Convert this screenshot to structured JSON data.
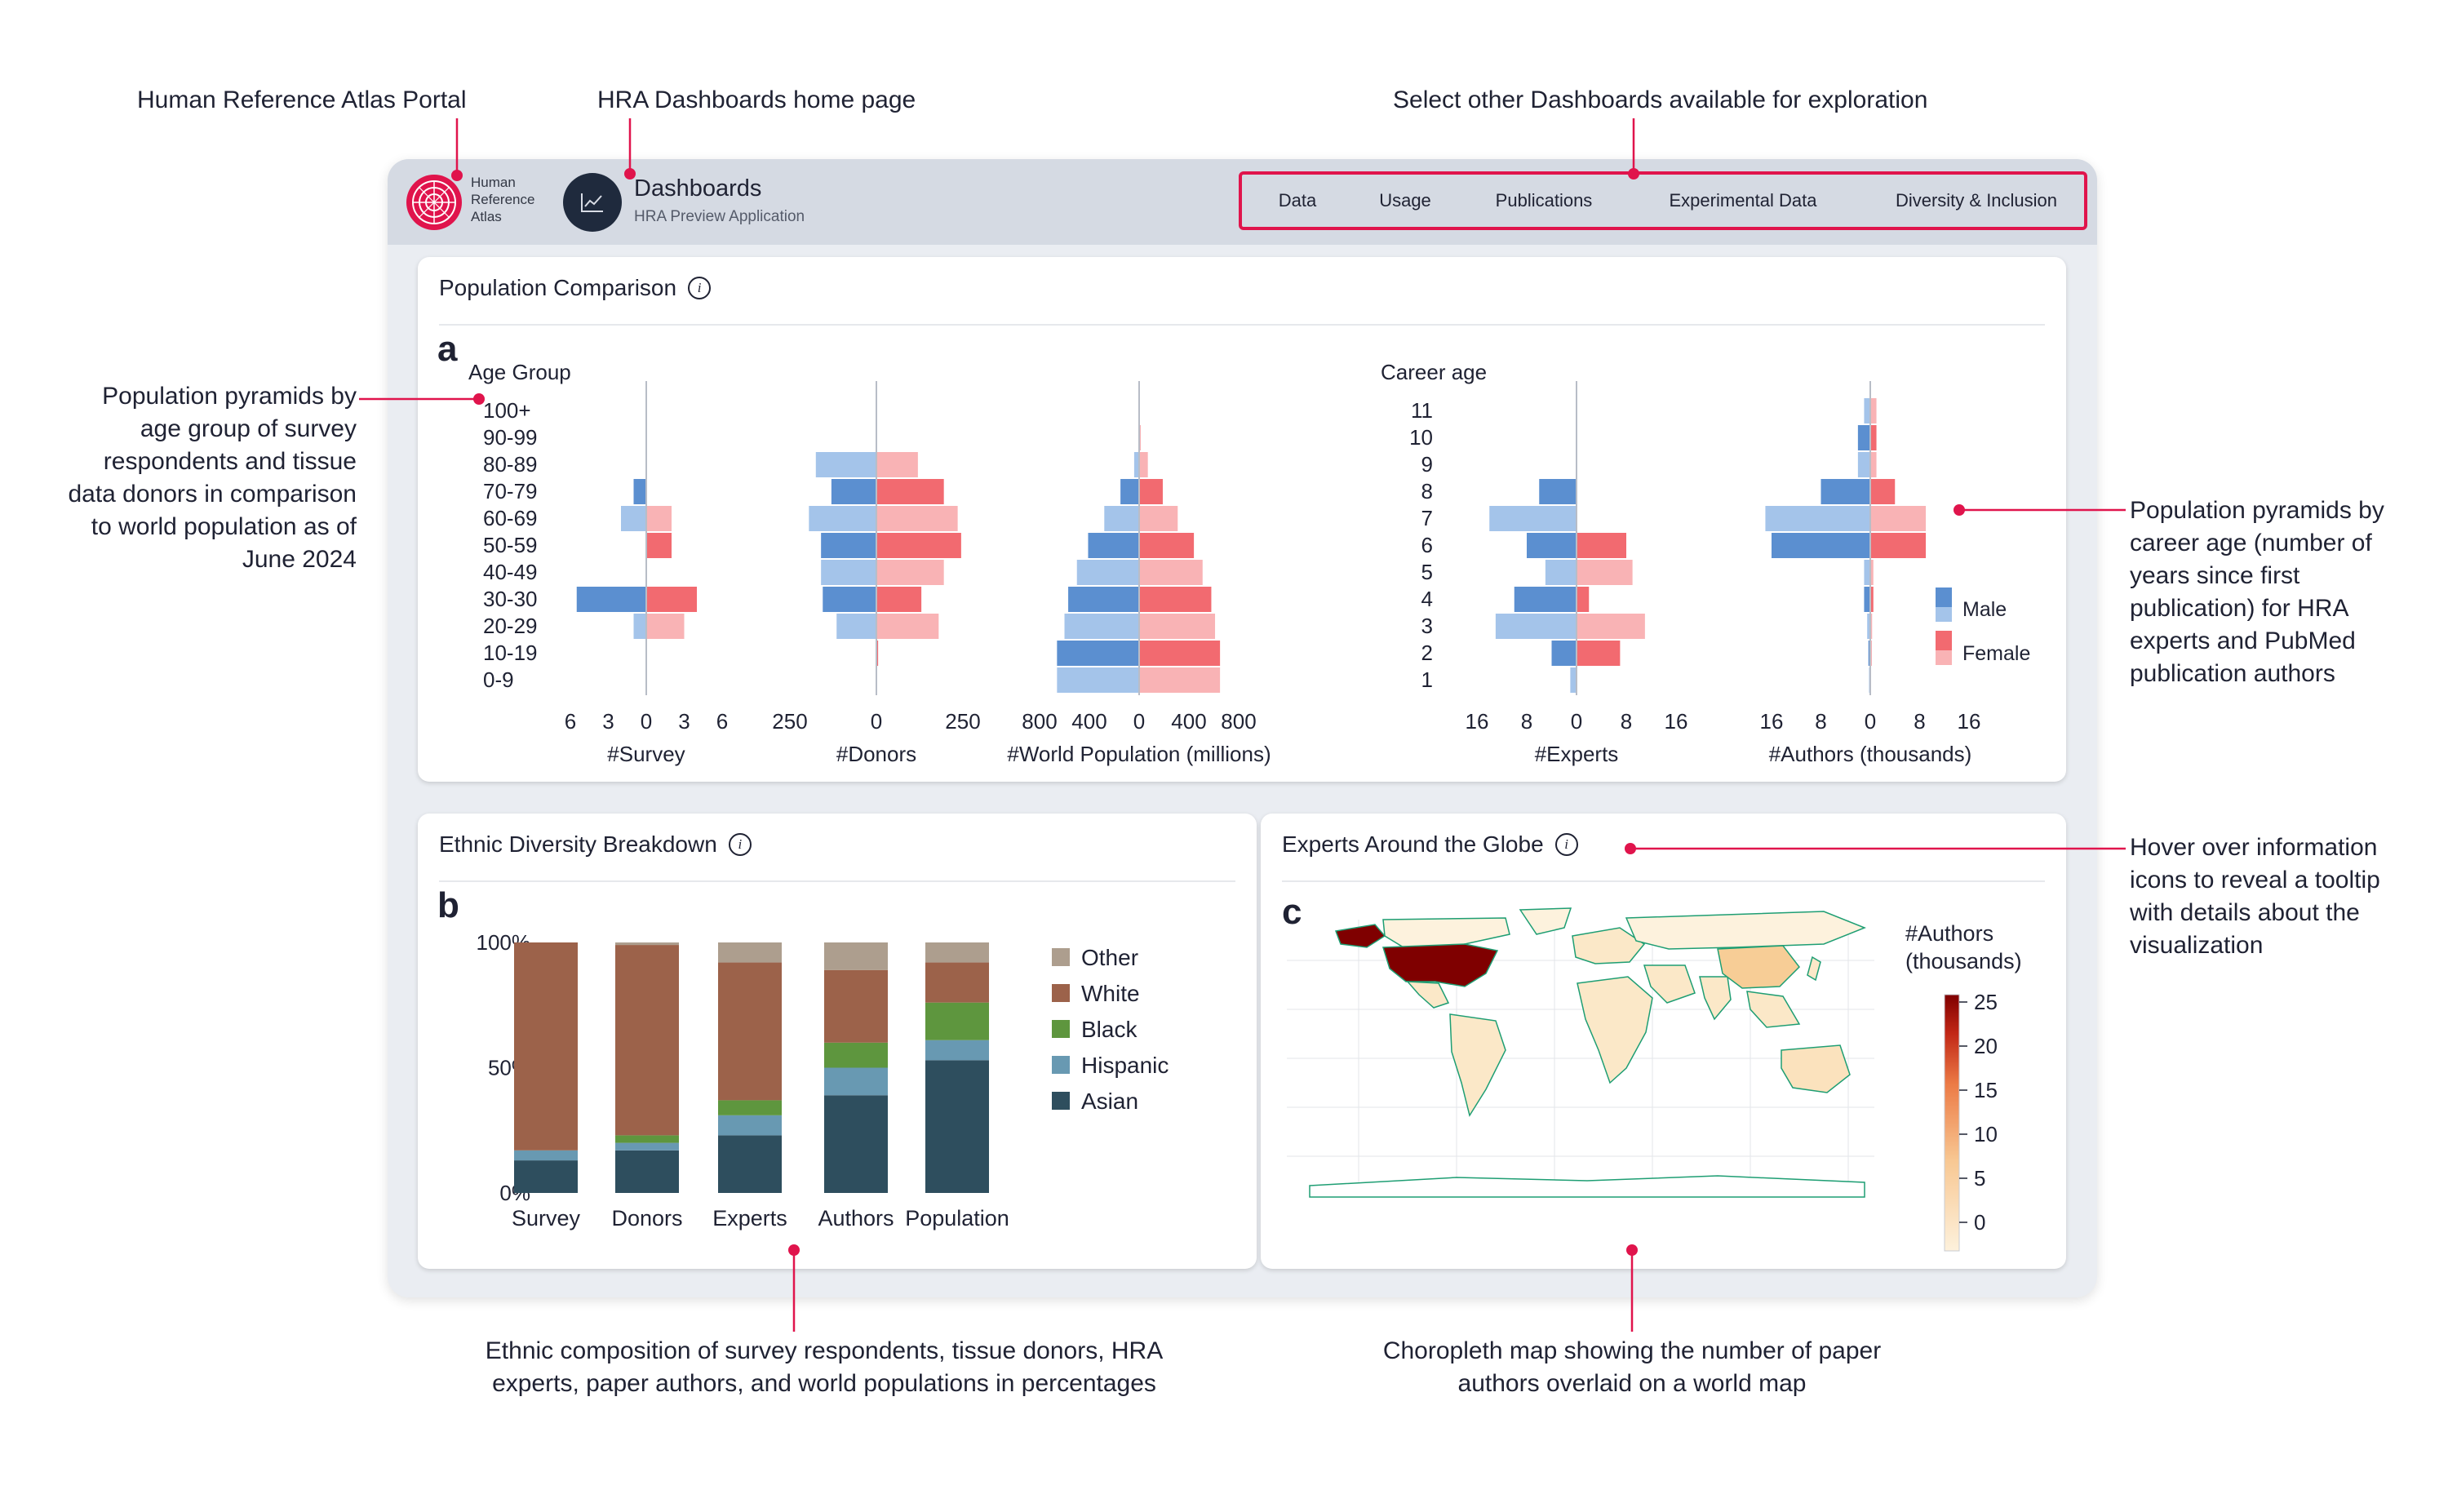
{
  "callouts": {
    "portal": "Human Reference Atlas Portal",
    "home": "HRA Dashboards home page",
    "select": "Select other Dashboards available for exploration",
    "pyramids_age": "Population pyramids by\nage group of survey\nrespondents and tissue\ndata donors in comparison\nto world population as of\nJune 2024",
    "pyramids_career": "Population pyramids by\ncareer age (number of\nyears since first\npublication) for HRA\nexperts and PubMed\npublication authors",
    "hover": "Hover over information\nicons to reveal a tooltip\nwith details about the\nvisualization",
    "ethnic": "Ethnic composition of survey respondents, tissue donors, HRA\nexperts, paper authors, and world populations in percentages",
    "choropleth": "Choropleth map showing the number of paper\nauthors overlaid on a world map"
  },
  "header": {
    "logo_text": "Human\nReference\nAtlas",
    "app_title": "Dashboards",
    "app_subtitle": "HRA Preview Application",
    "nav": [
      "Data",
      "Usage",
      "Publications",
      "Experimental Data",
      "Diversity & Inclusion"
    ]
  },
  "cards": {
    "population": {
      "title": "Population Comparison",
      "letter": "a",
      "info": "i"
    },
    "ethnic": {
      "title": "Ethnic Diversity Breakdown",
      "letter": "b",
      "info": "i"
    },
    "globe": {
      "title": "Experts Around the Globe",
      "letter": "c",
      "info": "i"
    }
  },
  "colors": {
    "male_dark": "#5b8fd0",
    "male_light": "#a4c4ea",
    "female_dark": "#f26a70",
    "female_light": "#f9b3b5",
    "accent": "#e0144c",
    "other": "#ad9e8e",
    "white": "#9c624a",
    "black": "#5e963e",
    "hispanic": "#6899b2",
    "asian": "#2e4e5e"
  },
  "chart_data": [
    {
      "type": "bar",
      "name": "age_pyramids",
      "y_title": "Age Group",
      "age_groups": [
        "100+",
        "90-99",
        "80-89",
        "70-79",
        "60-69",
        "50-59",
        "40-49",
        "30-30",
        "20-29",
        "10-19",
        "0-9"
      ],
      "panels": [
        {
          "xlabel": "#Survey",
          "ticks": [
            "6",
            "3",
            "0",
            "3",
            "6"
          ],
          "max": 6,
          "male": [
            0,
            0,
            0,
            1,
            2,
            0,
            0,
            5.5,
            1,
            0,
            0
          ],
          "female": [
            0,
            0,
            0,
            0,
            2,
            2,
            0,
            4,
            3,
            0,
            0
          ]
        },
        {
          "xlabel": "#Donors",
          "ticks": [
            "250",
            "0",
            "250"
          ],
          "max": 250,
          "male": [
            0,
            0,
            175,
            130,
            195,
            160,
            160,
            155,
            115,
            0,
            0
          ],
          "female": [
            0,
            0,
            120,
            195,
            235,
            245,
            195,
            130,
            180,
            5,
            0
          ]
        },
        {
          "xlabel": "#World Population (millions)",
          "ticks": [
            "800",
            "400",
            "0",
            "400",
            "800"
          ],
          "max": 800,
          "male": [
            0,
            5,
            40,
            150,
            280,
            410,
            500,
            570,
            600,
            660,
            660
          ],
          "female": [
            0,
            10,
            70,
            190,
            310,
            440,
            510,
            580,
            610,
            650,
            650
          ]
        }
      ]
    },
    {
      "type": "bar",
      "name": "career_pyramids",
      "y_title": "Career age",
      "career_ages": [
        "11",
        "10",
        "9",
        "8",
        "7",
        "6",
        "5",
        "4",
        "3",
        "2",
        "1"
      ],
      "panels": [
        {
          "xlabel": "#Experts",
          "ticks": [
            "16",
            "8",
            "0",
            "8",
            "16"
          ],
          "max": 16,
          "male": [
            0,
            0,
            0,
            6,
            14,
            8,
            5,
            10,
            13,
            4,
            1
          ],
          "female": [
            0,
            0,
            0,
            0,
            0,
            8,
            9,
            2,
            11,
            7,
            0
          ]
        },
        {
          "xlabel": "#Authors (thousands)",
          "ticks": [
            "16",
            "8",
            "0",
            "8",
            "16"
          ],
          "max": 16,
          "male": [
            1,
            2,
            2,
            8,
            17,
            16,
            1,
            1,
            0.5,
            0.3,
            0.2
          ],
          "female": [
            1,
            1,
            1,
            4,
            9,
            9,
            0.5,
            0.5,
            0.3,
            0.2,
            0.1
          ]
        }
      ],
      "legend": [
        "Male",
        "Female"
      ]
    },
    {
      "type": "bar",
      "name": "ethnic_stacked",
      "categories": [
        "Survey",
        "Donors",
        "Experts",
        "Authors",
        "Population"
      ],
      "y_ticks": [
        "100%",
        "50%",
        "0%"
      ],
      "series": [
        {
          "name": "Asian",
          "values": [
            13,
            17,
            23,
            39,
            53
          ]
        },
        {
          "name": "Hispanic",
          "values": [
            4,
            3,
            8,
            11,
            8
          ]
        },
        {
          "name": "Black",
          "values": [
            0,
            3,
            6,
            10,
            15
          ]
        },
        {
          "name": "White",
          "values": [
            83,
            76,
            55,
            29,
            16
          ]
        },
        {
          "name": "Other",
          "values": [
            0,
            1,
            8,
            11,
            8
          ]
        }
      ],
      "legend_order": [
        "Other",
        "White",
        "Black",
        "Hispanic",
        "Asian"
      ]
    },
    {
      "type": "heatmap",
      "name": "world_choropleth",
      "legend_title": "#Authors\n(thousands)",
      "scale_ticks": [
        "25",
        "20",
        "15",
        "10",
        "5",
        "0"
      ],
      "range": [
        0,
        25
      ]
    }
  ]
}
